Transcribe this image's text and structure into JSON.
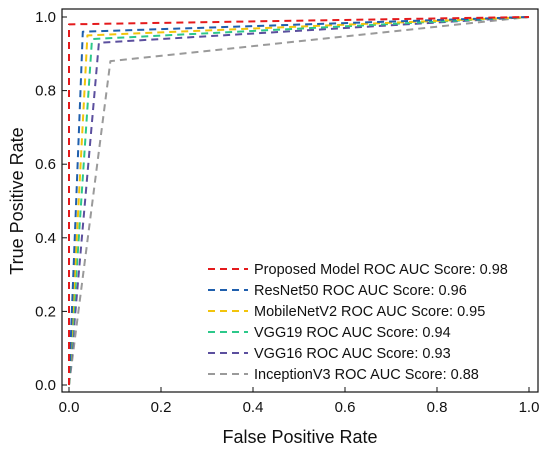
{
  "chart_data": {
    "type": "line",
    "title": "",
    "xlabel": "False Positive Rate",
    "ylabel": "True Positive Rate",
    "xlim": [
      0,
      1
    ],
    "ylim": [
      0,
      1
    ],
    "x_ticks": [
      "0.0",
      "0.2",
      "0.4",
      "0.6",
      "0.8",
      "1.0"
    ],
    "y_ticks": [
      "0.0",
      "0.2",
      "0.4",
      "0.6",
      "0.8",
      "1.0"
    ],
    "grid": false,
    "legend_position": "bottom-right",
    "line_style": "dashed",
    "series": [
      {
        "name": "Proposed Model ROC AUC Score: 0.98",
        "color": "#e41a1c",
        "x": [
          0,
          0.0,
          1.0
        ],
        "y": [
          0,
          0.98,
          1.0
        ]
      },
      {
        "name": "ResNet50 ROC AUC Score: 0.96",
        "color": "#1f5fad",
        "x": [
          0,
          0.03,
          1.0
        ],
        "y": [
          0,
          0.96,
          1.0
        ]
      },
      {
        "name": "MobileNetV2 ROC AUC Score: 0.95",
        "color": "#f2c40c",
        "x": [
          0,
          0.04,
          1.0
        ],
        "y": [
          0,
          0.95,
          1.0
        ]
      },
      {
        "name": "VGG19 ROC AUC Score: 0.94",
        "color": "#2cc88a",
        "x": [
          0,
          0.05,
          1.0
        ],
        "y": [
          0,
          0.94,
          1.0
        ]
      },
      {
        "name": "VGG16 ROC AUC Score: 0.93",
        "color": "#5b4f9e",
        "x": [
          0,
          0.065,
          1.0
        ],
        "y": [
          0,
          0.93,
          1.0
        ]
      },
      {
        "name": "InceptionV3 ROC AUC Score: 0.88",
        "color": "#9a9a9a",
        "x": [
          0,
          0.09,
          1.0
        ],
        "y": [
          0,
          0.88,
          1.0
        ]
      }
    ]
  }
}
